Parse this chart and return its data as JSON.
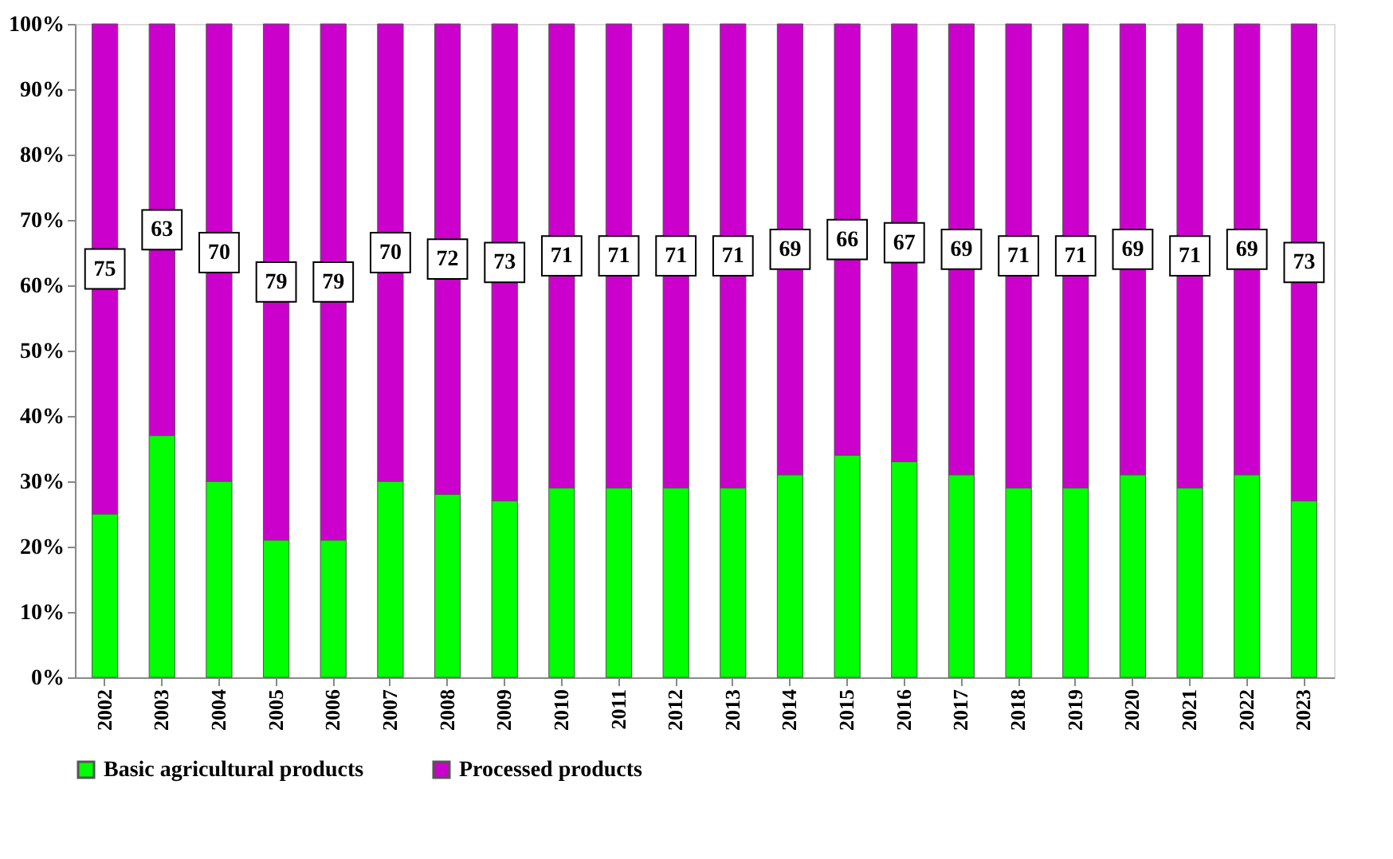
{
  "chart_data": {
    "type": "bar",
    "stacked": true,
    "categories": [
      "2002",
      "2003",
      "2004",
      "2005",
      "2006",
      "2007",
      "2008",
      "2009",
      "2010",
      "2011",
      "2012",
      "2013",
      "2014",
      "2015",
      "2016",
      "2017",
      "2018",
      "2019",
      "2020",
      "2021",
      "2022",
      "2023"
    ],
    "series": [
      {
        "name": "Basic agricultural products",
        "color": "#00ff00",
        "values": [
          25,
          37,
          30,
          21,
          21,
          30,
          28,
          27,
          29,
          29,
          29,
          29,
          31,
          34,
          33,
          31,
          29,
          29,
          31,
          29,
          31,
          27
        ]
      },
      {
        "name": "Processed products",
        "color": "#cc00cc",
        "values": [
          75,
          63,
          70,
          79,
          79,
          70,
          72,
          73,
          71,
          71,
          71,
          71,
          69,
          66,
          67,
          69,
          71,
          71,
          69,
          71,
          69,
          73
        ],
        "value_labels": [
          "75",
          "63",
          "70",
          "79",
          "79",
          "70",
          "72",
          "73",
          "71",
          "71",
          "71",
          "71",
          "69",
          "66",
          "67",
          "69",
          "71",
          "71",
          "69",
          "71",
          "69",
          "73"
        ]
      }
    ],
    "ylim": [
      0,
      100
    ],
    "yticks": [
      {
        "value": 0,
        "label": "0%"
      },
      {
        "value": 10,
        "label": "10%"
      },
      {
        "value": 20,
        "label": "20%"
      },
      {
        "value": 30,
        "label": "30%"
      },
      {
        "value": 40,
        "label": "40%"
      },
      {
        "value": 50,
        "label": "50%"
      },
      {
        "value": 60,
        "label": "60%"
      },
      {
        "value": 70,
        "label": "70%"
      },
      {
        "value": 80,
        "label": "80%"
      },
      {
        "value": 90,
        "label": "90%"
      },
      {
        "value": 100,
        "label": "100%"
      }
    ],
    "grid": false,
    "legend": "bottom"
  }
}
